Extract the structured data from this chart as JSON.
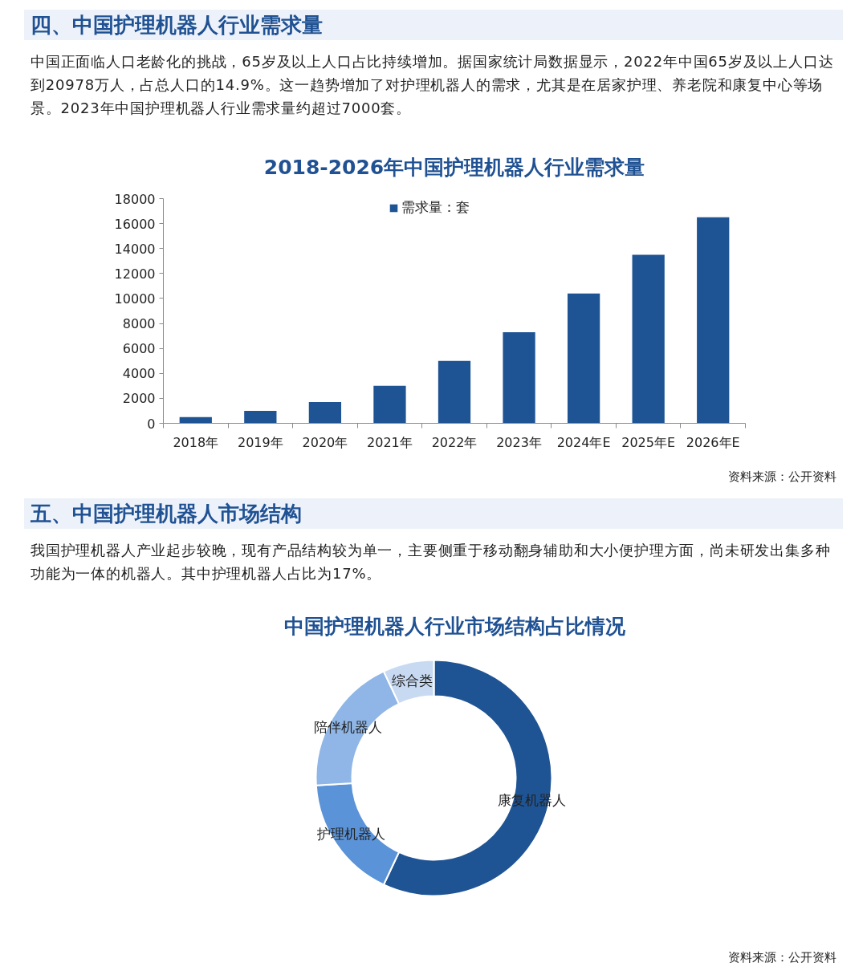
{
  "chart_data": [
    {
      "type": "bar",
      "title": "2018-2026年中国护理机器人行业需求量",
      "annotations": [
        "四、中国护理机器人行业需求量",
        "中国正面临人口老龄化的挑战，65岁及以上人口占比持续增加。据国家统计局数据显示，2022年中国65岁及以上人口达到20978万人，占总人口的14.9%。这一趋势增加了对护理机器人的需求，尤其是在居家护理、养老院和康复中心等场景。2023年中国护理机器人行业需求量约超过7000套。",
        "资料来源：公开资料"
      ],
      "categories": [
        "2018年",
        "2019年",
        "2020年",
        "2021年",
        "2022年",
        "2023年",
        "2024年E",
        "2025年E",
        "2026年E"
      ],
      "series": [
        {
          "name": "需求量：套",
          "color": "#1f5494",
          "values": [
            500,
            1000,
            1700,
            3000,
            5000,
            7300,
            10400,
            13500,
            16500
          ]
        }
      ],
      "ylim": [
        0,
        18000
      ],
      "yticks": [
        0,
        2000,
        4000,
        6000,
        8000,
        10000,
        12000,
        14000,
        16000,
        18000
      ],
      "grid": false,
      "legend": "top"
    },
    {
      "type": "donut",
      "title": "中国护理机器人行业市场结构占比情况",
      "annotations": [
        "五、中国护理机器人市场结构",
        "我国护理机器人产业起步较晚，现有产品结构较为单一，主要侧重于移动翻身辅助和大小便护理方面，尚未研发出集多种功能为一体的机器人。其中护理机器人占比为17%。",
        "资料来源：公开资料"
      ],
      "categories": [
        "康复机器人",
        "护理机器人",
        "陪伴机器人",
        "综合类"
      ],
      "values": [
        57,
        17,
        19,
        7
      ],
      "colors": [
        "#1f5494",
        "#5b93d8",
        "#8fb6e6",
        "#c8daf2"
      ]
    }
  ]
}
